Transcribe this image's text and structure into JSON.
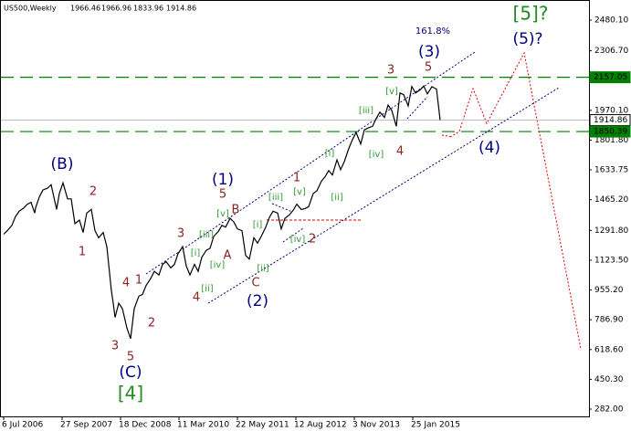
{
  "chart_data": {
    "type": "line",
    "ohlc": [
      1966.46,
      1966.96,
      1833.96,
      1914.86
    ],
    "series": [
      {
        "name": "US500,Weekly",
        "color": "#000000",
        "x": [
          0,
          4,
          9,
          13,
          17,
          22,
          26,
          30,
          34,
          35,
          39,
          43,
          48,
          52,
          58,
          61,
          65,
          70,
          74,
          78,
          83,
          87,
          91,
          96,
          100,
          104,
          109,
          113,
          118,
          120,
          122,
          126,
          130,
          135,
          139,
          143,
          148,
          152,
          156,
          161,
          165,
          170,
          174,
          178,
          183,
          187,
          191,
          196,
          200,
          204,
          209,
          213,
          217,
          222,
          226,
          230,
          235,
          239,
          243,
          248,
          252,
          256,
          261,
          265,
          269,
          274,
          278,
          282,
          287,
          291,
          295,
          300,
          304,
          308,
          313,
          317,
          321,
          326,
          330,
          334,
          339,
          343,
          348,
          352,
          356,
          360,
          365,
          369,
          373,
          378,
          382,
          386,
          391,
          395,
          399,
          404,
          408,
          412,
          417,
          421,
          425,
          430,
          434,
          438,
          443,
          447,
          451,
          456,
          460,
          464,
          469,
          474,
          478
        ],
        "values": [
          1270,
          1290,
          1320,
          1370,
          1400,
          1418,
          1440,
          1450,
          1390,
          1420,
          1480,
          1520,
          1530,
          1550,
          1410,
          1500,
          1560,
          1470,
          1470,
          1330,
          1350,
          1280,
          1390,
          1410,
          1290,
          1250,
          1280,
          1200,
          950,
          880,
          800,
          880,
          850,
          740,
          680,
          850,
          920,
          930,
          980,
          1020,
          1060,
          1040,
          1100,
          1115,
          1080,
          1100,
          1160,
          1200,
          1090,
          1040,
          1100,
          1060,
          1140,
          1180,
          1190,
          1257,
          1285,
          1320,
          1310,
          1360,
          1340,
          1300,
          1290,
          1150,
          1130,
          1250,
          1220,
          1257,
          1310,
          1365,
          1400,
          1390,
          1300,
          1360,
          1380,
          1405,
          1440,
          1410,
          1415,
          1426,
          1500,
          1515,
          1570,
          1595,
          1630,
          1605,
          1690,
          1635,
          1680,
          1755,
          1805,
          1845,
          1780,
          1860,
          1870,
          1880,
          1925,
          1960,
          1930,
          2000,
          1970,
          1880,
          2068,
          2059,
          1995,
          2105,
          2068,
          2086,
          2107,
          2063,
          2104,
          2090,
          1914.86
        ]
      }
    ],
    "xlim": [
      -4,
      641
    ],
    "xticks": [
      {
        "value": 0,
        "label": "6 Jul 2006"
      },
      {
        "value": 64,
        "label": "27 Sep 2007"
      },
      {
        "value": 128,
        "label": "18 Dec 2008"
      },
      {
        "value": 192,
        "label": "11 Mar 2010"
      },
      {
        "value": 256,
        "label": "22 May 2011"
      },
      {
        "value": 320,
        "label": "12 Aug 2012"
      },
      {
        "value": 384,
        "label": "3 Nov 2013"
      },
      {
        "value": 448,
        "label": "25 Jan 2015"
      }
    ],
    "ylim": [
      {
        "value": 282,
        "label": "282.00"
      },
      {
        "value": 2480.1,
        "label": "2480.10"
      }
    ],
    "yticks": [
      {
        "value": 2480.1,
        "label": "2480.10"
      },
      {
        "value": 2306.7,
        "label": "2306.70"
      },
      {
        "value": 1970.1,
        "label": "1970.10"
      },
      {
        "value": 1801.8,
        "label": "1801.80"
      },
      1633.75,
      {
        "value": 1465.2,
        "label": "1465.20"
      },
      {
        "value": 1291.8,
        "label": "1291.80"
      },
      {
        "value": 1123.5,
        "label": "1123.50"
      },
      {
        "value": 955.2,
        "label": "955.20"
      },
      {
        "value": 786.9,
        "label": "786.90"
      },
      {
        "value": 618.6,
        "label": "618.60"
      },
      {
        "value": 450.3,
        "label": "450.30"
      },
      {
        "value": 282,
        "label": "282.00"
      }
    ],
    "levels": [
      {
        "value": 2157.05,
        "color": "#008000"
      },
      {
        "value": 1914.86,
        "color": "#c0c0c0"
      },
      {
        "value": 1850.39,
        "color": "#008000"
      }
    ],
    "annotations": [
      {
        "text": "[5]?",
        "color": "#228b22"
      },
      {
        "text": "(5)?",
        "color": "#000080"
      },
      {
        "text": "161.8%",
        "color": "#000080"
      },
      {
        "text": "(3)",
        "color": "#000080"
      },
      {
        "text": "3",
        "color": "#8b2323"
      },
      {
        "text": "5",
        "color": "#8b2323"
      },
      {
        "text": "(4)",
        "color": "#000080"
      },
      {
        "text": "4",
        "color": "#8b2323"
      },
      {
        "text": "(B)",
        "color": "#000080"
      },
      {
        "text": "2",
        "color": "#8b2323"
      },
      {
        "text": "1",
        "color": "#8b2323"
      },
      {
        "text": "4",
        "color": "#8b2323"
      },
      {
        "text": "1",
        "color": "#8b2323"
      },
      {
        "text": "2",
        "color": "#8b2323"
      },
      {
        "text": "3",
        "color": "#8b2323"
      },
      {
        "text": "5",
        "color": "#8b2323"
      },
      {
        "text": "(C)",
        "color": "#000080"
      },
      {
        "text": "[4]",
        "color": "#228b22"
      },
      {
        "text": "3",
        "color": "#8b2323"
      },
      {
        "text": "4",
        "color": "#8b2323"
      },
      {
        "text": "(1)",
        "color": "#000080"
      },
      {
        "text": "5",
        "color": "#8b2323"
      },
      {
        "text": "B",
        "color": "#8b2323"
      },
      {
        "text": "A",
        "color": "#8b2323"
      },
      {
        "text": "C",
        "color": "#8b2323"
      },
      {
        "text": "(2)",
        "color": "#000080"
      },
      {
        "text": "1",
        "color": "#8b2323"
      },
      {
        "text": "2",
        "color": "#8b2323"
      },
      {
        "text": "[i]",
        "color": "#339933"
      },
      {
        "text": "[ii]",
        "color": "#339933"
      },
      {
        "text": "[iii]",
        "color": "#339933"
      },
      {
        "text": "[iv]",
        "color": "#339933"
      },
      {
        "text": "[v]",
        "color": "#339933"
      },
      {
        "text": "[i]",
        "color": "#339933"
      },
      {
        "text": "[ii]",
        "color": "#339933"
      },
      {
        "text": "[iii]",
        "color": "#339933"
      },
      {
        "text": "[iv]",
        "color": "#339933"
      },
      {
        "text": "[v]",
        "color": "#339933"
      },
      {
        "text": "[i]",
        "color": "#339933"
      },
      {
        "text": "[ii]",
        "color": "#339933"
      },
      {
        "text": "[iii]",
        "color": "#339933"
      },
      {
        "text": "[iv]",
        "color": "#339933"
      },
      {
        "text": "[v]",
        "color": "#339933"
      }
    ]
  }
}
